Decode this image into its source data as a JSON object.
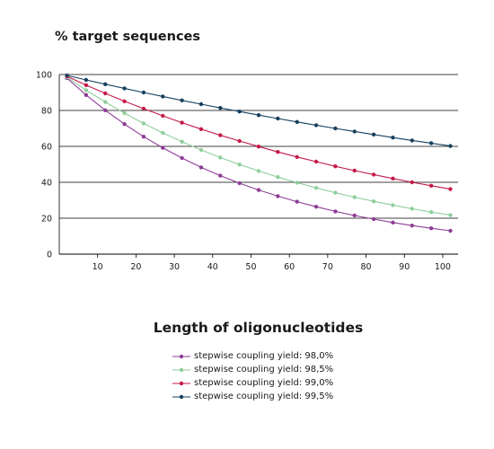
{
  "chart_data": {
    "type": "line",
    "ylabel": "% target sequences",
    "xlabel": "Length of oligonucleotides",
    "xlim": [
      0,
      104
    ],
    "ylim": [
      0,
      100
    ],
    "x_ticks": [
      10,
      20,
      30,
      40,
      50,
      60,
      70,
      80,
      90,
      100
    ],
    "y_ticks": [
      0,
      20,
      40,
      60,
      80,
      100
    ],
    "grid": "horizontal",
    "legend_position": "bottom",
    "x": [
      2,
      7,
      12,
      17,
      22,
      27,
      32,
      37,
      42,
      47,
      52,
      57,
      62,
      67,
      72,
      77,
      82,
      87,
      92,
      97,
      102
    ],
    "series": [
      {
        "name": "stepwise coupling yield: 98,0%",
        "color": "#8e3c96",
        "values": [
          98.0,
          88.6,
          80.1,
          72.4,
          65.4,
          59.2,
          53.5,
          48.3,
          43.7,
          39.5,
          35.7,
          32.3,
          29.2,
          26.4,
          23.8,
          21.5,
          19.5,
          17.6,
          15.9,
          14.4,
          13.0
        ]
      },
      {
        "name": "stepwise coupling yield: 98,5%",
        "color": "#8fcf9c",
        "values": [
          98.5,
          91.3,
          84.7,
          78.5,
          72.8,
          67.5,
          62.6,
          58.0,
          53.8,
          49.9,
          46.3,
          42.9,
          39.8,
          36.9,
          34.2,
          31.7,
          29.4,
          27.3,
          25.3,
          23.4,
          21.7
        ]
      },
      {
        "name": "stepwise coupling yield: 99,0%",
        "color": "#c41a48",
        "values": [
          99.0,
          94.1,
          89.5,
          85.1,
          81.0,
          77.0,
          73.2,
          69.6,
          66.2,
          63.0,
          59.9,
          56.9,
          54.1,
          51.5,
          48.9,
          46.5,
          44.3,
          42.1,
          40.0,
          38.1,
          36.2
        ]
      },
      {
        "name": "stepwise coupling yield: 99,5%",
        "color": "#14405e",
        "values": [
          99.5,
          97.0,
          94.6,
          92.3,
          90.0,
          87.8,
          85.6,
          83.5,
          81.4,
          79.4,
          77.4,
          75.5,
          73.6,
          71.8,
          70.0,
          68.3,
          66.6,
          64.9,
          63.3,
          61.8,
          60.2
        ]
      }
    ]
  }
}
